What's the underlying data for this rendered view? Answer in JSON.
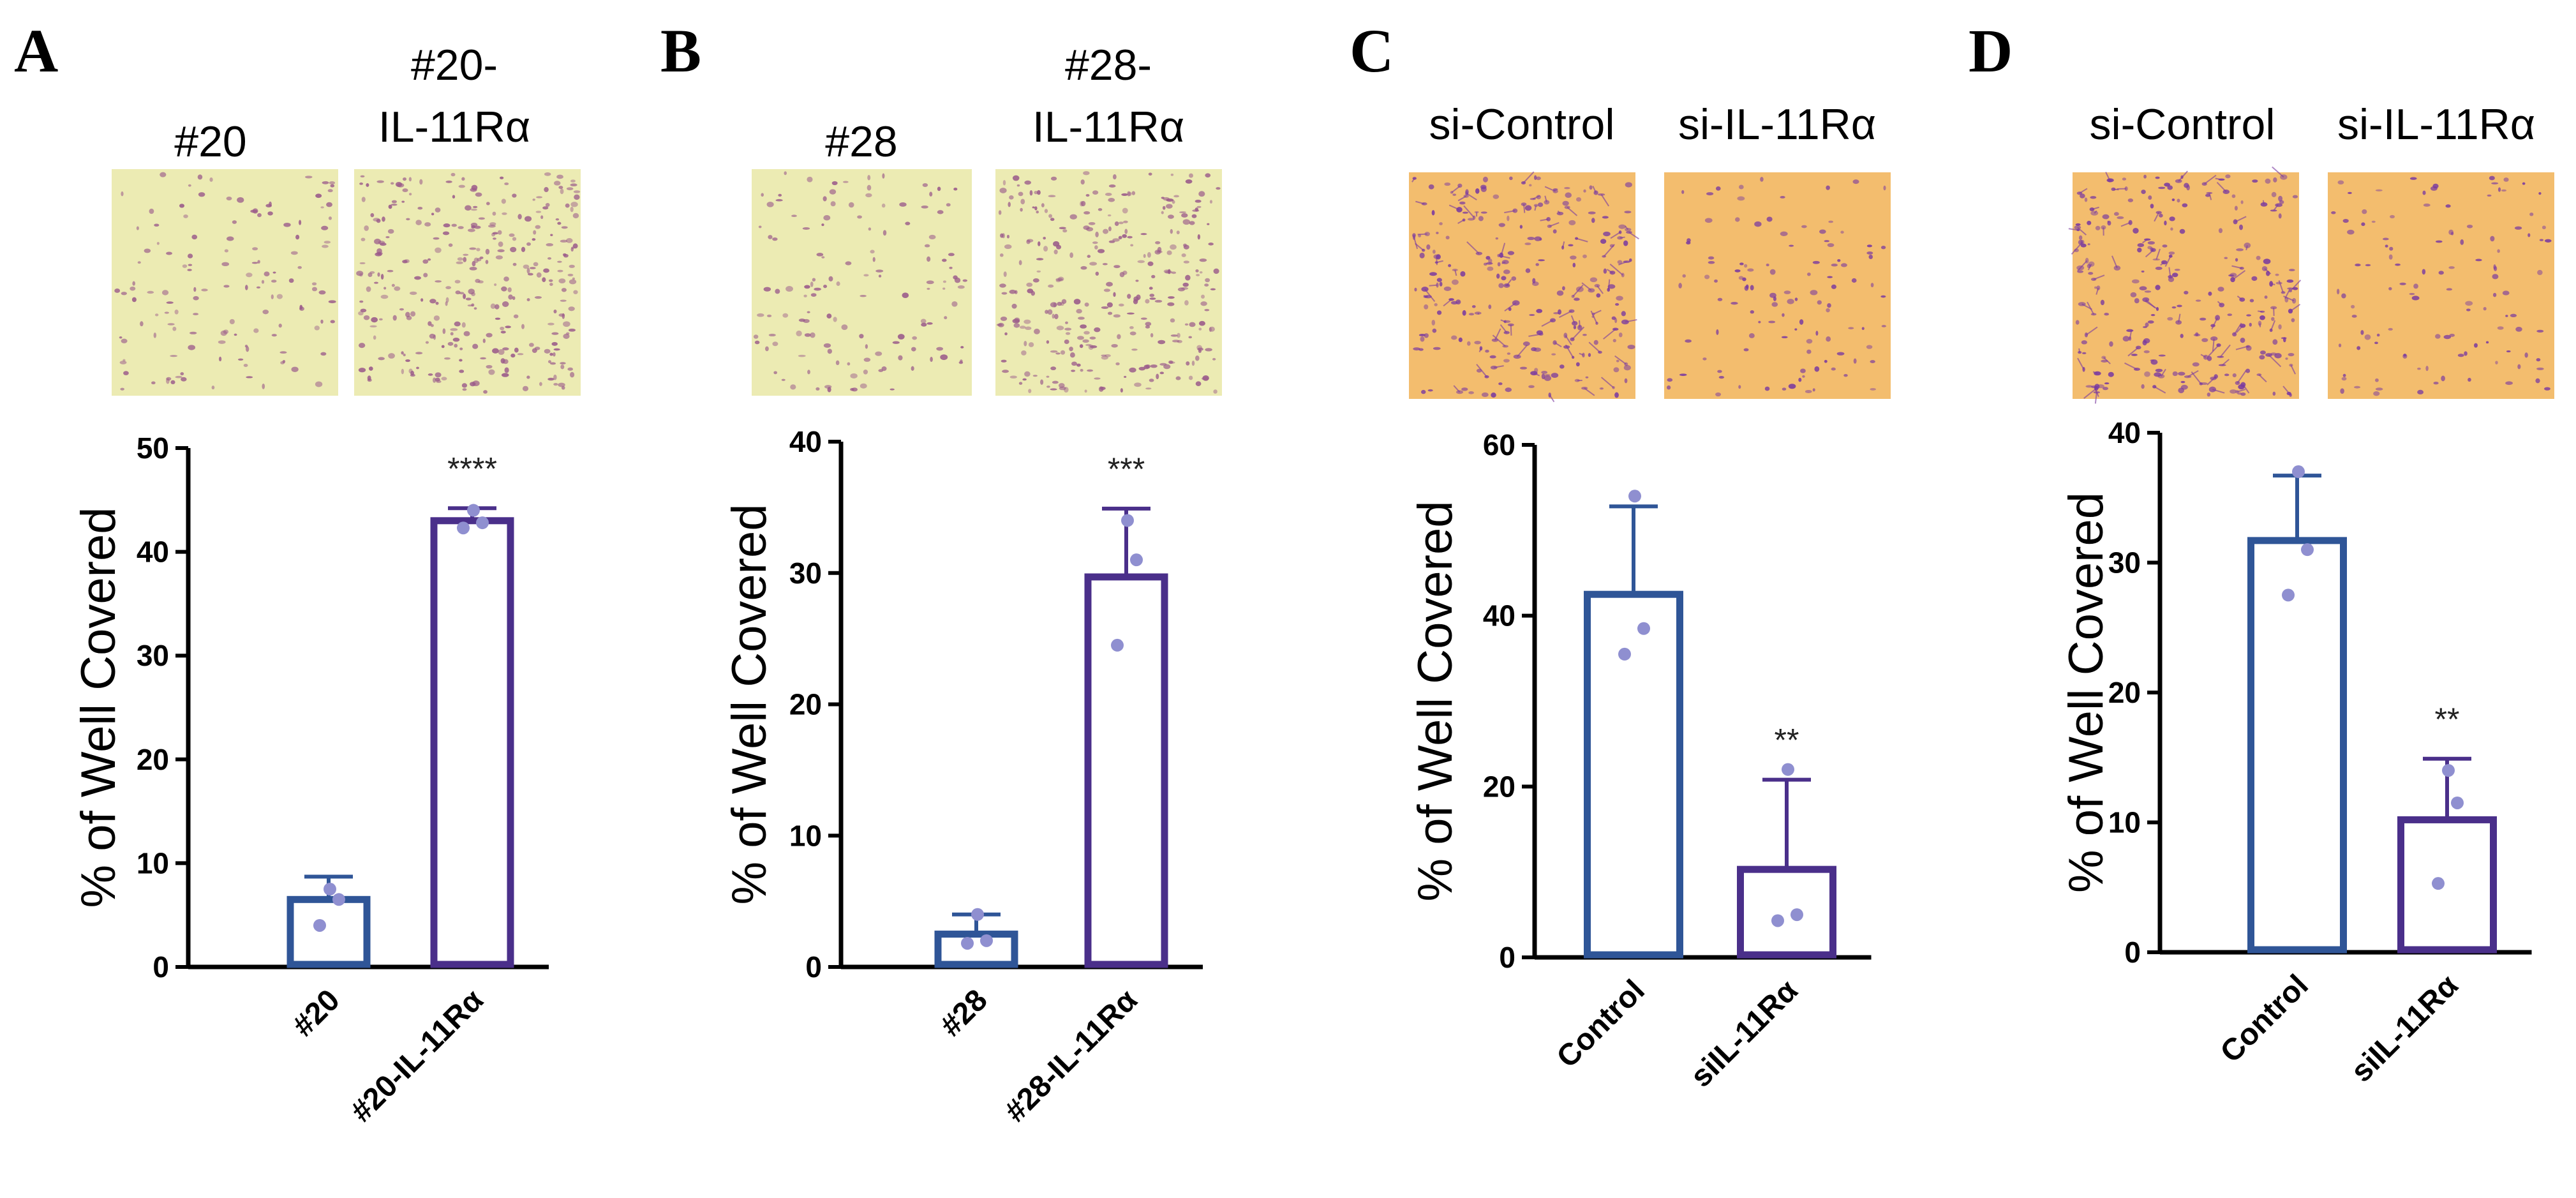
{
  "colors": {
    "control_bar": "#2f5597",
    "treatment_bar": "#4a2f8a",
    "points": "#8f8fd0",
    "well_yellow": "#ecebb3",
    "well_orange": "#f3bd6e",
    "cell_yellow_panel": "#9a5a8a",
    "cell_orange_panel": "#7a3aa0"
  },
  "chart_data": [
    {
      "panel": "A",
      "type": "bar",
      "image_labels": [
        "#20",
        "#20-\nIL-11Rα"
      ],
      "image_style": "yellow",
      "ylabel": "% of Well Covered",
      "ylim": [
        0,
        50
      ],
      "yticks": [
        "0",
        "10",
        "20",
        "30",
        "40",
        "50"
      ],
      "categories": [
        "#20",
        "#20-IL-11Rα"
      ],
      "values": [
        6.5,
        43
      ],
      "error": [
        2.2,
        1.2
      ],
      "points": [
        [
          7.5,
          6.5,
          4
        ],
        [
          44,
          42.8,
          42.3
        ]
      ],
      "significance": [
        "",
        "****"
      ]
    },
    {
      "panel": "B",
      "type": "bar",
      "image_labels": [
        "#28",
        "#28-\nIL-11Rα"
      ],
      "image_style": "yellow",
      "ylabel": "% of Well Covered",
      "ylim": [
        0,
        40
      ],
      "yticks": [
        "0",
        "10",
        "20",
        "30",
        "40"
      ],
      "categories": [
        "#28",
        "#28-IL-11Rα"
      ],
      "values": [
        2.5,
        29.7
      ],
      "error": [
        1.5,
        5.2
      ],
      "points": [
        [
          4,
          2,
          1.8
        ],
        [
          34,
          31,
          24.5
        ]
      ],
      "significance": [
        "",
        "***"
      ]
    },
    {
      "panel": "C",
      "type": "bar",
      "image_labels": [
        "si-Control",
        "si-IL-11Rα"
      ],
      "image_style": "orange",
      "ylabel": "% of Well Covered",
      "ylim": [
        0,
        60
      ],
      "yticks": [
        "0",
        "20",
        "40",
        "60"
      ],
      "categories": [
        "Control",
        "siIL-11Rα"
      ],
      "values": [
        42.5,
        10.3
      ],
      "error": [
        10.3,
        10.5
      ],
      "points": [
        [
          54,
          38.5,
          35.5
        ],
        [
          22,
          5,
          4.3
        ]
      ],
      "significance": [
        "",
        "**"
      ]
    },
    {
      "panel": "D",
      "type": "bar",
      "image_labels": [
        "si-Control",
        "si-IL-11Rα"
      ],
      "image_style": "orange",
      "ylabel": "% of Well Covered",
      "ylim": [
        0,
        40
      ],
      "yticks": [
        "0",
        "10",
        "20",
        "30",
        "40"
      ],
      "categories": [
        "Control",
        "siIL-11Rα"
      ],
      "values": [
        31.7,
        10.2
      ],
      "error": [
        5,
        4.7
      ],
      "points": [
        [
          37,
          31,
          27.5
        ],
        [
          14,
          11.5,
          5.3
        ]
      ],
      "significance": [
        "",
        "**"
      ]
    }
  ]
}
